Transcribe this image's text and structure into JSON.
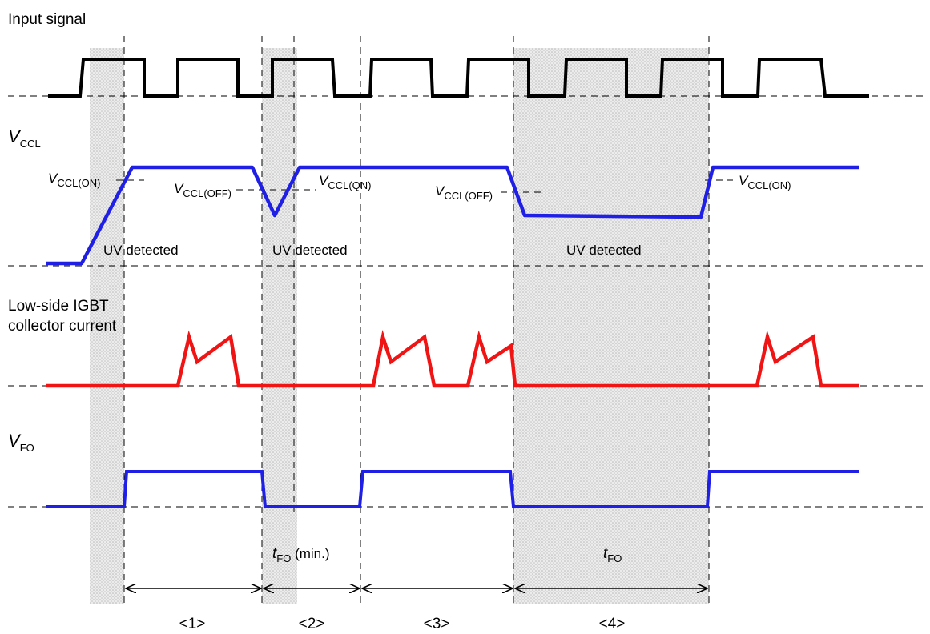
{
  "labels": {
    "input_signal": "Input signal",
    "vccl_symbol": "V",
    "vccl_sub": "CCL",
    "low_side_line1": "Low-side IGBT",
    "low_side_line2": "collector current",
    "vfo_symbol": "V",
    "vfo_sub": "FO"
  },
  "annotations": {
    "v_symbol": "V",
    "vccl_on_sub": "CCL(ON)",
    "vccl_off_sub": "CCL(OFF)",
    "vccl_on2_sub": "CCL(QN)",
    "uv_detected": "UV detected",
    "t_symbol": "t",
    "tfo_sub": "FO",
    "tfo_min_suffix": " (min.)"
  },
  "intervals": [
    "<1>",
    "<2>",
    "<3>",
    "<4>"
  ],
  "colors": {
    "input_trace": "#000000",
    "vccl_trace": "#1f1fe6",
    "current_trace": "#f01414",
    "vfo_trace": "#1f1fe6",
    "shade": "#dcdcdc"
  }
}
